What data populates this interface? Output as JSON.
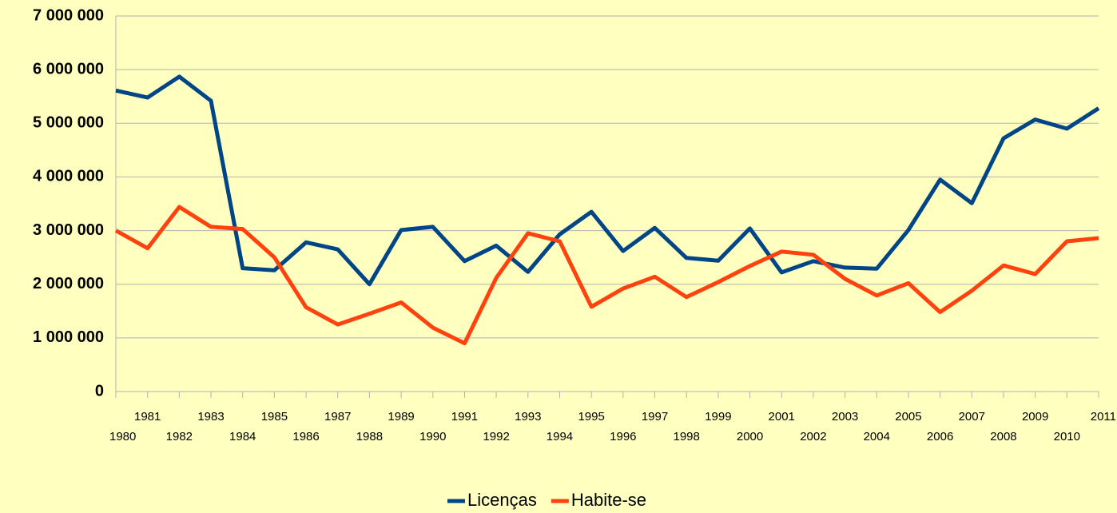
{
  "chart_data": {
    "type": "line",
    "categories": [
      "1980",
      "1981",
      "1982",
      "1983",
      "1984",
      "1985",
      "1986",
      "1987",
      "1988",
      "1989",
      "1990",
      "1991",
      "1992",
      "1993",
      "1994",
      "1995",
      "1996",
      "1997",
      "1998",
      "1999",
      "2000",
      "2001",
      "2002",
      "2003",
      "2004",
      "2005",
      "2006",
      "2007",
      "2008",
      "2009",
      "2010",
      "2011"
    ],
    "series": [
      {
        "name": "Licenças",
        "color": "#004586",
        "values": [
          5610000,
          5480000,
          5870000,
          5420000,
          2300000,
          2260000,
          2780000,
          2650000,
          2000000,
          3010000,
          3070000,
          2430000,
          2720000,
          2230000,
          2930000,
          3350000,
          2620000,
          3050000,
          2490000,
          2440000,
          3040000,
          2220000,
          2430000,
          2310000,
          2290000,
          3010000,
          3950000,
          3510000,
          4720000,
          5070000,
          4900000,
          5280000
        ]
      },
      {
        "name": "Habite-se",
        "color": "#ff420e",
        "values": [
          3000000,
          2670000,
          3440000,
          3070000,
          3030000,
          2500000,
          1570000,
          1250000,
          1450000,
          1660000,
          1190000,
          900000,
          2120000,
          2950000,
          2800000,
          1580000,
          1920000,
          2140000,
          1760000,
          2040000,
          2340000,
          2610000,
          2550000,
          2100000,
          1790000,
          2020000,
          1480000,
          1880000,
          2350000,
          2190000,
          2800000,
          2860000
        ]
      }
    ],
    "ylim": [
      0,
      7000000
    ],
    "yticks": [
      0,
      {
        "value": 1000000,
        "label": "1 000 000"
      },
      {
        "value": 2000000,
        "label": "2 000 000"
      },
      {
        "value": 3000000,
        "label": "3 000 000"
      },
      {
        "value": 4000000,
        "label": "4 000 000"
      },
      {
        "value": 5000000,
        "label": "5 000 000"
      },
      {
        "value": 6000000,
        "label": "6 000 000"
      },
      {
        "value": 7000000,
        "label": "7 000 000"
      }
    ],
    "grid": true,
    "legend": "bottom"
  }
}
